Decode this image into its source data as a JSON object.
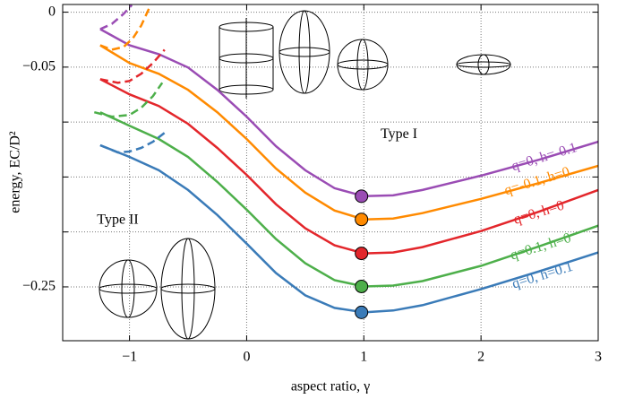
{
  "chart_data": {
    "type": "line",
    "xlabel": "aspect ratio, γ",
    "ylabel": "energy, EC/D²",
    "xlim": [
      -1.57,
      3
    ],
    "ylim": [
      -0.299,
      0.007
    ],
    "xticks": [
      {
        "value": -1,
        "label": "−1"
      },
      0,
      1,
      2,
      3
    ],
    "yticks": [
      0,
      {
        "value": -0.05,
        "label": "−0.05"
      },
      {
        "value": -0.1,
        "label": null
      },
      {
        "value": -0.15,
        "label": null
      },
      {
        "value": -0.2,
        "label": null
      },
      {
        "value": -0.25,
        "label": "−0.25"
      }
    ],
    "grid": true,
    "annotations": [
      {
        "text": "Type I",
        "x": 1.3,
        "y": -0.1115
      },
      {
        "text": "Type II",
        "x": -1.1,
        "y": -0.1895
      }
    ],
    "x": [
      -1.25,
      -1,
      -0.75,
      -0.5,
      -0.25,
      0,
      0.25,
      0.5,
      0.75,
      1,
      1.25,
      1.5,
      2,
      2.5,
      3
    ],
    "series": [
      {
        "name": "q=0, h=-0.1",
        "color": "#9a4cb4",
        "values": [
          -0.0154,
          -0.0301,
          -0.0382,
          -0.0504,
          -0.0707,
          -0.0951,
          -0.122,
          -0.1439,
          -0.1602,
          -0.1675,
          -0.1667,
          -0.1618,
          -0.1488,
          -0.1341,
          -0.1179
        ],
        "marker_x": 0.98,
        "marker_value": -0.1675,
        "branch": {
          "x": [
            -1.25,
            -1.15,
            -1.05,
            -0.98
          ],
          "values": [
            -0.0154,
            -0.0106,
            -0.0016,
            0.0065
          ]
        }
      },
      {
        "name": "q=-0.1, h=0",
        "color": "#ff8a00",
        "values": [
          -0.0301,
          -0.0463,
          -0.0561,
          -0.0707,
          -0.0911,
          -0.1154,
          -0.1423,
          -0.1642,
          -0.1805,
          -0.1886,
          -0.1878,
          -0.1829,
          -0.1699,
          -0.1553,
          -0.1398
        ],
        "marker_x": 0.98,
        "marker_value": -0.1886,
        "branch": {
          "x": [
            -1.25,
            -1.15,
            -1.05,
            -0.97,
            -0.9,
            -0.83
          ],
          "values": [
            -0.0301,
            -0.0341,
            -0.0317,
            -0.0236,
            -0.0122,
            0.0041
          ]
        }
      },
      {
        "name": "q=0, h=0",
        "color": "#e3262b",
        "values": [
          -0.061,
          -0.0748,
          -0.0854,
          -0.1016,
          -0.1236,
          -0.148,
          -0.1748,
          -0.1967,
          -0.2122,
          -0.2195,
          -0.2187,
          -0.2138,
          -0.1992,
          -0.1813,
          -0.1618
        ],
        "marker_x": 0.98,
        "marker_value": -0.2195,
        "branch": {
          "x": [
            -1.25,
            -1.1,
            -1.0,
            -0.9,
            -0.8,
            -0.7
          ],
          "values": [
            -0.061,
            -0.0642,
            -0.0626,
            -0.0561,
            -0.0463,
            -0.0341
          ]
        }
      },
      {
        "name": "q=0.1, h=0",
        "color": "#4daf4a",
        "values": [
          -0.0911,
          -0.1033,
          -0.1154,
          -0.1317,
          -0.1545,
          -0.1797,
          -0.2065,
          -0.2285,
          -0.2439,
          -0.2496,
          -0.2488,
          -0.2447,
          -0.2309,
          -0.213,
          -0.1943
        ],
        "marker_x": 0.98,
        "marker_value": -0.2496,
        "branch": {
          "x": [
            -1.3,
            -1.15,
            -1.0,
            -0.9,
            -0.8,
            -0.72
          ],
          "values": [
            -0.0911,
            -0.0951,
            -0.0935,
            -0.087,
            -0.0764,
            -0.0642
          ]
        }
      },
      {
        "name": "q=0, h=0.1",
        "color": "#3a7bb8",
        "values": [
          -0.1211,
          -0.1317,
          -0.1439,
          -0.1618,
          -0.1846,
          -0.2106,
          -0.2374,
          -0.2577,
          -0.2691,
          -0.2732,
          -0.2715,
          -0.2667,
          -0.252,
          -0.2358,
          -0.2187
        ],
        "marker_x": 0.98,
        "marker_value": -0.2732,
        "branch": {
          "x": [
            -1.25,
            -1.1,
            -1.0,
            -0.9,
            -0.8,
            -0.7
          ],
          "values": [
            -0.1211,
            -0.1276,
            -0.1268,
            -0.1236,
            -0.1179,
            -0.1098
          ]
        }
      }
    ]
  }
}
